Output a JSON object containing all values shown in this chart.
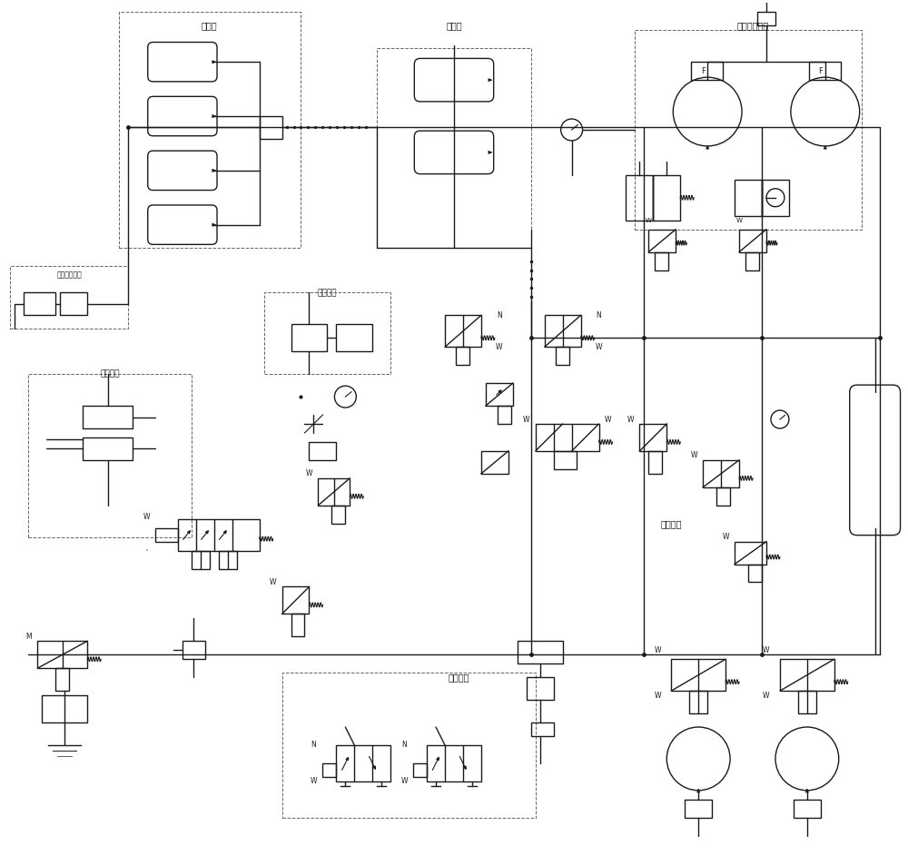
{
  "bg_color": "#ffffff",
  "lc": "#1a1a1a",
  "lw": 1.0,
  "labels": {
    "chu_qi_ping_1": "储气瓶",
    "chu_qi_ping_2": "储气瓶",
    "duoji_zhuosai_mada": "多级柱塞马达",
    "kong_qi_zengya": "空气增压系统",
    "hang_che_zhidong": "行车制动",
    "huan_xiang_qi_gang": "换向气缸",
    "zhu_che_zhidong": "驻车制动",
    "yao_kong_shou_bing": "遥控手柄"
  }
}
